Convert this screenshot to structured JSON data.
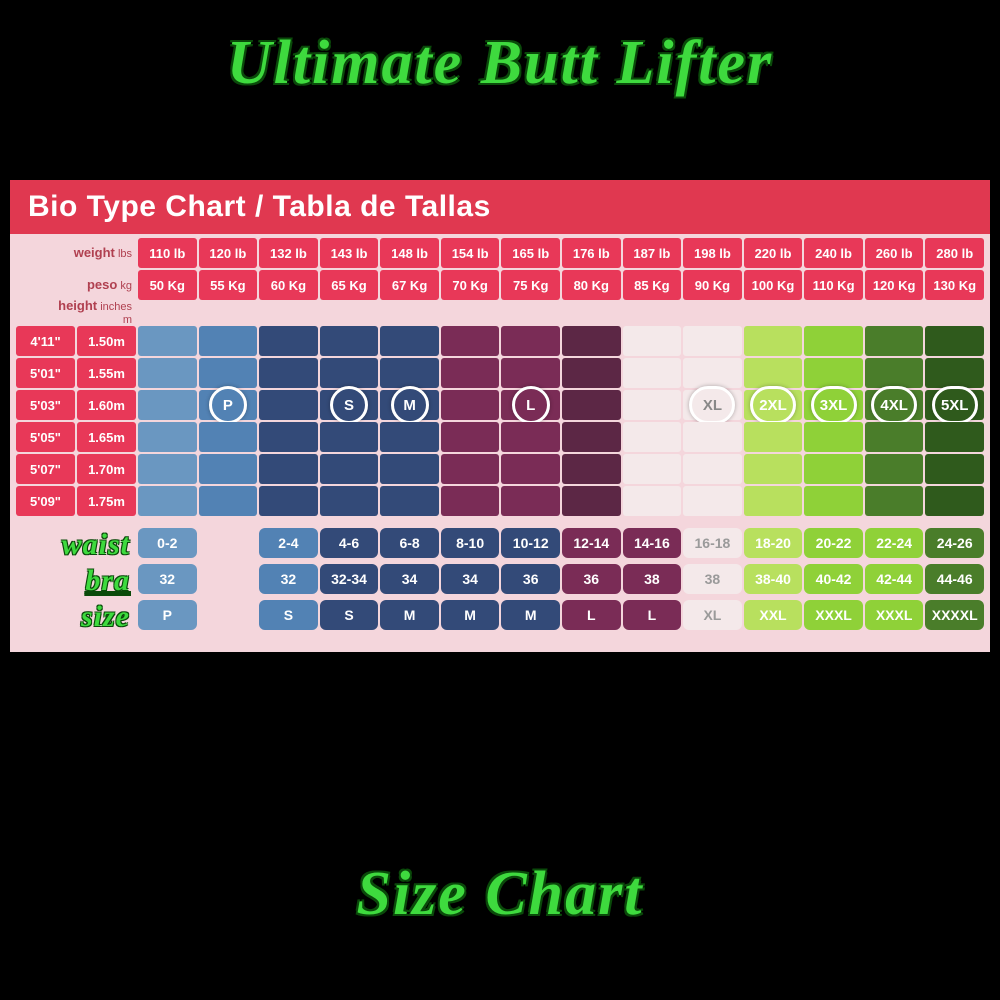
{
  "title_top": "Ultimate Butt Lifter",
  "title_bottom": "Size Chart",
  "chart_header": "Bio Type Chart / Tabla de Tallas",
  "hdr_weight_1": "weight",
  "hdr_weight_1u": "lbs",
  "hdr_weight_2": "peso",
  "hdr_weight_2u": "kg",
  "hdr_height_1": "height",
  "hdr_height_1u": "inches",
  "hdr_height_2": "m",
  "weights_lb": [
    "110 lb",
    "120 lb",
    "132 lb",
    "143 lb",
    "148 lb",
    "154 lb",
    "165 lb",
    "176 lb",
    "187 lb",
    "198 lb",
    "220 lb",
    "240 lb",
    "260 lb",
    "280 lb"
  ],
  "weights_kg": [
    "50 Kg",
    "55 Kg",
    "60 Kg",
    "65 Kg",
    "67 Kg",
    "70 Kg",
    "75 Kg",
    "80 Kg",
    "85 Kg",
    "90 Kg",
    "100 Kg",
    "110 Kg",
    "120 Kg",
    "130 Kg"
  ],
  "heights": [
    "4'11\"",
    "5'01\"",
    "5'03\"",
    "5'05\"",
    "5'07\"",
    "5'09\""
  ],
  "heights_m": [
    "1.50m",
    "1.55m",
    "1.60m",
    "1.65m",
    "1.70m",
    "1.75m"
  ],
  "colors": {
    "pink_bg": "#f4d6dc",
    "header_red": "#e03850",
    "axis_red": "#e83858",
    "blue1": "#6a97c1",
    "blue2": "#5282b4",
    "navy": "#334a78",
    "maroon": "#7a2c56",
    "maroon2": "#5c2745",
    "white": "#f4e9ea",
    "lime1": "#b8e05e",
    "lime2": "#8fd138",
    "green_dark": "#4a7d2a",
    "green_darker": "#2f5a1c"
  },
  "body_grid": [
    [
      "blue1",
      "blue2",
      "navy",
      "navy",
      "navy",
      "maroon",
      "maroon",
      "maroon2",
      "white",
      "white",
      "lime1",
      "lime2",
      "green_dark",
      "green_darker"
    ],
    [
      "blue1",
      "blue2",
      "navy",
      "navy",
      "navy",
      "maroon",
      "maroon",
      "maroon2",
      "white",
      "white",
      "lime1",
      "lime2",
      "green_dark",
      "green_darker"
    ],
    [
      "blue1",
      "blue2",
      "navy",
      "navy",
      "navy",
      "maroon",
      "maroon",
      "maroon2",
      "white",
      "white",
      "lime1",
      "lime2",
      "green_dark",
      "green_darker"
    ],
    [
      "blue1",
      "blue2",
      "navy",
      "navy",
      "navy",
      "maroon",
      "maroon",
      "maroon2",
      "white",
      "white",
      "lime1",
      "lime2",
      "green_dark",
      "green_darker"
    ],
    [
      "blue1",
      "blue2",
      "navy",
      "navy",
      "navy",
      "maroon",
      "maroon",
      "maroon2",
      "white",
      "white",
      "lime1",
      "lime2",
      "green_dark",
      "green_darker"
    ],
    [
      "blue1",
      "blue2",
      "navy",
      "navy",
      "navy",
      "maroon",
      "maroon",
      "maroon2",
      "white",
      "white",
      "lime1",
      "lime2",
      "green_dark",
      "green_darker"
    ]
  ],
  "size_badges": [
    {
      "col": 1,
      "label": "P",
      "bg": "#5282b4"
    },
    {
      "col": 3,
      "label": "S",
      "bg": "#334a78"
    },
    {
      "col": 4,
      "label": "M",
      "bg": "#334a78"
    },
    {
      "col": 6,
      "label": "L",
      "bg": "#7a2c56"
    },
    {
      "col": 9,
      "label": "XL",
      "bg": "#f4e9ea",
      "color": "#888",
      "wider": true
    },
    {
      "col": 10,
      "label": "2XL",
      "bg": "#b8e05e",
      "wider": true
    },
    {
      "col": 11,
      "label": "3XL",
      "bg": "#8fd138",
      "wider": true
    },
    {
      "col": 12,
      "label": "4XL",
      "bg": "#4a7d2a",
      "wider": true
    },
    {
      "col": 13,
      "label": "5XL",
      "bg": "#2f5a1c",
      "wider": true
    }
  ],
  "badge_row": 2,
  "bottom_rows": {
    "labels": [
      "waist",
      "bra",
      "size"
    ],
    "waist": [
      "0-2",
      "",
      "2-4",
      "4-6",
      "6-8",
      "8-10",
      "10-12",
      "12-14",
      "14-16",
      "16-18",
      "18-20",
      "20-22",
      "22-24",
      "24-26"
    ],
    "bra": [
      "32",
      "",
      "32",
      "32-34",
      "34",
      "34",
      "36",
      "36",
      "38",
      "38",
      "38-40",
      "40-42",
      "42-44",
      "44-46"
    ],
    "size": [
      "P",
      "",
      "S",
      "S",
      "M",
      "M",
      "M",
      "L",
      "L",
      "XL",
      "XXL",
      "XXXL",
      "XXXL",
      "XXXXL"
    ],
    "colors": [
      "blue1",
      "",
      "blue2",
      "navy",
      "navy",
      "navy",
      "navy",
      "maroon",
      "maroon",
      "white",
      "lime1",
      "lime2",
      "lime2",
      "green_dark"
    ]
  },
  "white_text_override": "#9a9a9a"
}
